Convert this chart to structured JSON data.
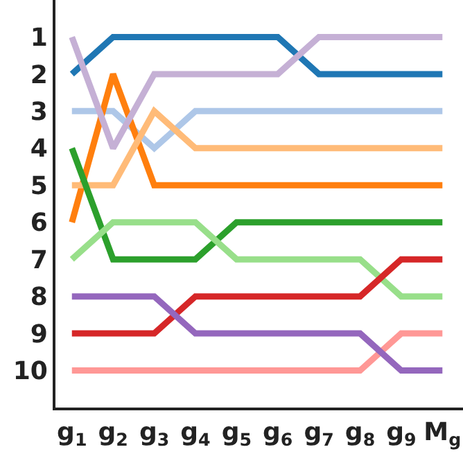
{
  "chart_data": {
    "type": "line",
    "categories": [
      "g$_{1}$",
      "g$_{2}$",
      "g$_{3}$",
      "g$_{4}$",
      "g$_{5}$",
      "g$_{6}$",
      "g$_{7}$",
      "g$_{8}$",
      "g$_{9}$",
      "M$_{g}$"
    ],
    "series": [
      {
        "color": "#1f77b4",
        "values": [
          2,
          1,
          1,
          1,
          1,
          1,
          2,
          2,
          2,
          2
        ]
      },
      {
        "color": "#aec7e8",
        "values": [
          3,
          3,
          4,
          3,
          3,
          3,
          3,
          3,
          3,
          3
        ]
      },
      {
        "color": "#ff7f0e",
        "values": [
          6,
          2,
          5,
          5,
          5,
          5,
          5,
          5,
          5,
          5
        ]
      },
      {
        "color": "#ffbb78",
        "values": [
          5,
          5,
          3,
          4,
          4,
          4,
          4,
          4,
          4,
          4
        ]
      },
      {
        "color": "#2ca02c",
        "values": [
          4,
          7,
          7,
          7,
          6,
          6,
          6,
          6,
          6,
          6
        ]
      },
      {
        "color": "#98df8a",
        "values": [
          7,
          6,
          6,
          6,
          7,
          7,
          7,
          7,
          8,
          8
        ]
      },
      {
        "color": "#d62728",
        "values": [
          9,
          9,
          9,
          8,
          8,
          8,
          8,
          8,
          7,
          7
        ]
      },
      {
        "color": "#ff9896",
        "values": [
          10,
          10,
          10,
          10,
          10,
          10,
          10,
          10,
          9,
          9
        ]
      },
      {
        "color": "#9467bd",
        "values": [
          8,
          8,
          8,
          9,
          9,
          9,
          9,
          9,
          10,
          10
        ]
      },
      {
        "color": "#c5b0d5",
        "values": [
          1,
          4,
          2,
          2,
          2,
          2,
          1,
          1,
          1,
          1
        ]
      }
    ],
    "ylim": [
      11,
      0
    ],
    "yticks": [
      1,
      2,
      3,
      4,
      5,
      6,
      7,
      8,
      9,
      10
    ],
    "marker": "none",
    "line_style": "solid"
  }
}
